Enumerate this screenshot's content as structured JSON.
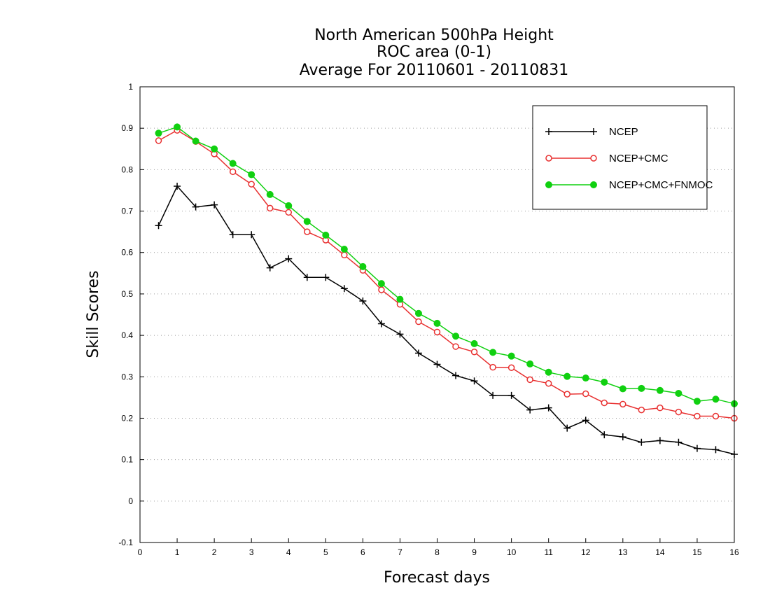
{
  "chart_data": {
    "type": "line",
    "title": [
      "North American 500hPa Height",
      "ROC area (0-1)",
      "Average For 20110601 - 20110831"
    ],
    "xlabel": "Forecast days",
    "ylabel": "Skill Scores",
    "xlim": [
      0,
      16
    ],
    "ylim": [
      -0.1,
      1
    ],
    "xticks": [
      0,
      1,
      2,
      3,
      4,
      5,
      6,
      7,
      8,
      9,
      10,
      11,
      12,
      13,
      14,
      15,
      16
    ],
    "yticks": [
      -0.1,
      0,
      0.1,
      0.2,
      0.3,
      0.4,
      0.5,
      0.6,
      0.7,
      0.8,
      0.9,
      1
    ],
    "ytick_labels": [
      "-0.1",
      "0",
      "0.1",
      "0.2",
      "0.3",
      "0.4",
      "0.5",
      "0.6",
      "0.7",
      "0.8",
      "0.9",
      "1"
    ],
    "grid": "horizontal-dotted",
    "legend_position": "top-right",
    "x": [
      0.5,
      1,
      1.5,
      2,
      2.5,
      3,
      3.5,
      4,
      4.5,
      5,
      5.5,
      6,
      6.5,
      7,
      7.5,
      8,
      8.5,
      9,
      9.5,
      10,
      10.5,
      11,
      11.5,
      12,
      12.5,
      13,
      13.5,
      14,
      14.5,
      15,
      15.5,
      16
    ],
    "series": [
      {
        "name": "NCEP",
        "color": "#000000",
        "marker": "plus",
        "values": [
          0.665,
          0.76,
          0.71,
          0.715,
          0.643,
          0.643,
          0.563,
          0.585,
          0.54,
          0.54,
          0.513,
          0.483,
          0.428,
          0.403,
          0.357,
          0.33,
          0.303,
          0.29,
          0.255,
          0.255,
          0.22,
          0.225,
          0.176,
          0.195,
          0.16,
          0.155,
          0.142,
          0.146,
          0.142,
          0.127,
          0.124,
          0.113
        ]
      },
      {
        "name": "NCEP+CMC",
        "color": "#e83030",
        "marker": "open-circle",
        "values": [
          0.87,
          0.895,
          0.868,
          0.838,
          0.795,
          0.765,
          0.707,
          0.697,
          0.65,
          0.63,
          0.594,
          0.557,
          0.51,
          0.475,
          0.433,
          0.408,
          0.373,
          0.36,
          0.323,
          0.322,
          0.293,
          0.284,
          0.258,
          0.259,
          0.237,
          0.234,
          0.22,
          0.225,
          0.215,
          0.205,
          0.205,
          0.2
        ]
      },
      {
        "name": "NCEP+CMC+FNMOC",
        "color": "#10d010",
        "marker": "filled-circle",
        "values": [
          0.888,
          0.903,
          0.869,
          0.85,
          0.815,
          0.788,
          0.74,
          0.713,
          0.675,
          0.642,
          0.608,
          0.566,
          0.525,
          0.487,
          0.453,
          0.429,
          0.398,
          0.38,
          0.359,
          0.35,
          0.331,
          0.311,
          0.301,
          0.297,
          0.287,
          0.271,
          0.272,
          0.267,
          0.26,
          0.241,
          0.246,
          0.235
        ]
      }
    ]
  }
}
